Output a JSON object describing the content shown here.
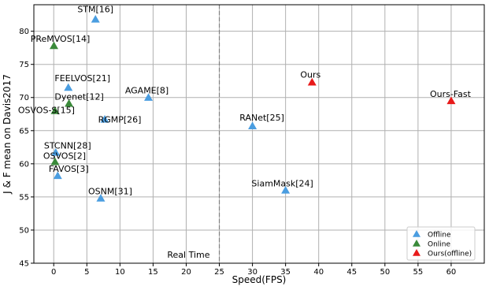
{
  "chart_data": {
    "type": "scatter",
    "title": "",
    "xlabel": "Speed(FPS)",
    "ylabel": "J & F mean on Davis2017",
    "xlim": [
      -3,
      65
    ],
    "ylim": [
      45,
      84
    ],
    "xticks": [
      0,
      5,
      10,
      15,
      20,
      25,
      30,
      35,
      40,
      45,
      50,
      55,
      60
    ],
    "yticks": [
      45,
      50,
      55,
      60,
      65,
      70,
      75,
      80
    ],
    "grid": true,
    "legend_position": "bottom-right",
    "annotations": [
      {
        "text": "Real Time",
        "x": 25,
        "style": "dashed vertical line"
      }
    ],
    "series": [
      {
        "name": "Offline",
        "color": "#4a9de0",
        "marker": "triangle",
        "points": [
          {
            "label": "STM[16]",
            "x": 6.3,
            "y": 81.8
          },
          {
            "label": "FEELVOS[21]",
            "x": 2.2,
            "y": 71.5
          },
          {
            "label": "AGAME[8]",
            "x": 14.3,
            "y": 70.0
          },
          {
            "label": "RGMP[26]",
            "x": 7.7,
            "y": 66.7
          },
          {
            "label": "RANet[25]",
            "x": 30.0,
            "y": 65.7
          },
          {
            "label": "STCNN[28]",
            "x": 0.3,
            "y": 61.7
          },
          {
            "label": "FAVOS[3]",
            "x": 0.6,
            "y": 58.2
          },
          {
            "label": "OSNM[31]",
            "x": 7.1,
            "y": 54.8
          },
          {
            "label": "SiamMask[24]",
            "x": 35.0,
            "y": 56.0
          }
        ]
      },
      {
        "name": "Online",
        "color": "#3a8a3a",
        "marker": "triangle",
        "points": [
          {
            "label": "PReMVOS[14]",
            "x": 0.03,
            "y": 77.8
          },
          {
            "label": "Dyenet[12]",
            "x": 2.3,
            "y": 69.1
          },
          {
            "label": "OSVOS-S[15]",
            "x": 0.2,
            "y": 68.0
          },
          {
            "label": "OSVOS[2]",
            "x": 0.2,
            "y": 60.3
          }
        ]
      },
      {
        "name": "Ours(offline)",
        "color": "#e81a1a",
        "marker": "triangle",
        "points": [
          {
            "label": "Ours",
            "x": 39.0,
            "y": 72.3
          },
          {
            "label": "Ours-Fast",
            "x": 60.0,
            "y": 69.5
          }
        ]
      }
    ]
  }
}
